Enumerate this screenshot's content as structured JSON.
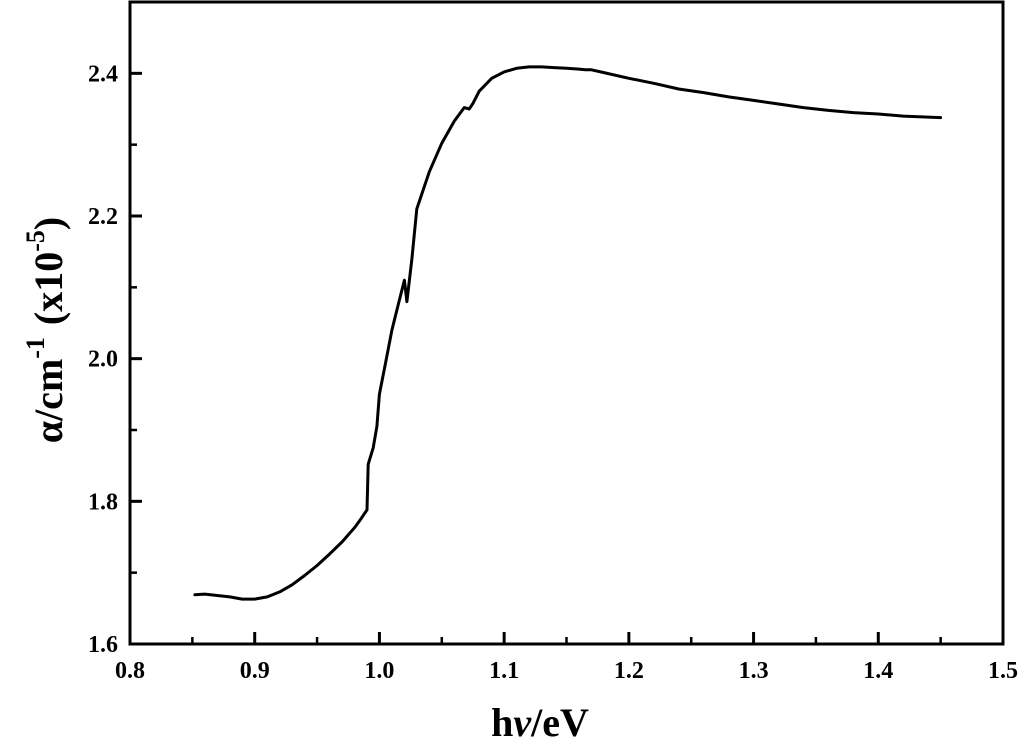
{
  "chart_data": {
    "type": "line",
    "title": "",
    "xlabel": {
      "base": "h",
      "italic": "v",
      "rest": "/eV"
    },
    "ylabel": {
      "main": "α/cm",
      "sup1": "-1",
      "paren": "(x10",
      "sup2": "-5",
      "close": ")"
    },
    "xlim": [
      0.8,
      1.5
    ],
    "ylim": [
      1.6,
      2.5
    ],
    "x_ticks": [
      "0.8",
      "0.9",
      "1.0",
      "1.1",
      "1.2",
      "1.3",
      "1.4",
      "1.5"
    ],
    "y_ticks": [
      "1.6",
      "1.8",
      "2.0",
      "2.2",
      "2.4"
    ],
    "grid": false,
    "legend": "none",
    "line_color": "#000000",
    "series": [
      {
        "x": [
          0.852,
          0.86,
          0.87,
          0.88,
          0.89,
          0.9,
          0.91,
          0.92,
          0.93,
          0.94,
          0.95,
          0.96,
          0.97,
          0.98,
          0.985,
          0.99,
          0.991,
          0.995,
          0.998,
          1.0,
          1.005,
          1.01,
          1.015,
          1.02,
          1.022,
          1.026,
          1.03,
          1.04,
          1.05,
          1.06,
          1.068,
          1.072,
          1.075,
          1.08,
          1.09,
          1.1,
          1.11,
          1.12,
          1.13,
          1.14,
          1.15,
          1.16,
          1.165,
          1.17,
          1.18,
          1.2,
          1.22,
          1.24,
          1.26,
          1.28,
          1.3,
          1.32,
          1.34,
          1.36,
          1.38,
          1.4,
          1.42,
          1.45
        ],
        "y": [
          1.669,
          1.67,
          1.668,
          1.666,
          1.663,
          1.663,
          1.666,
          1.673,
          1.683,
          1.696,
          1.71,
          1.726,
          1.743,
          1.763,
          1.775,
          1.788,
          1.852,
          1.875,
          1.905,
          1.95,
          1.995,
          2.04,
          2.075,
          2.11,
          2.08,
          2.14,
          2.21,
          2.262,
          2.302,
          2.333,
          2.352,
          2.35,
          2.358,
          2.375,
          2.393,
          2.402,
          2.407,
          2.409,
          2.409,
          2.408,
          2.407,
          2.406,
          2.405,
          2.405,
          2.401,
          2.393,
          2.386,
          2.378,
          2.373,
          2.367,
          2.362,
          2.357,
          2.352,
          2.348,
          2.345,
          2.343,
          2.34,
          2.338
        ]
      }
    ]
  }
}
